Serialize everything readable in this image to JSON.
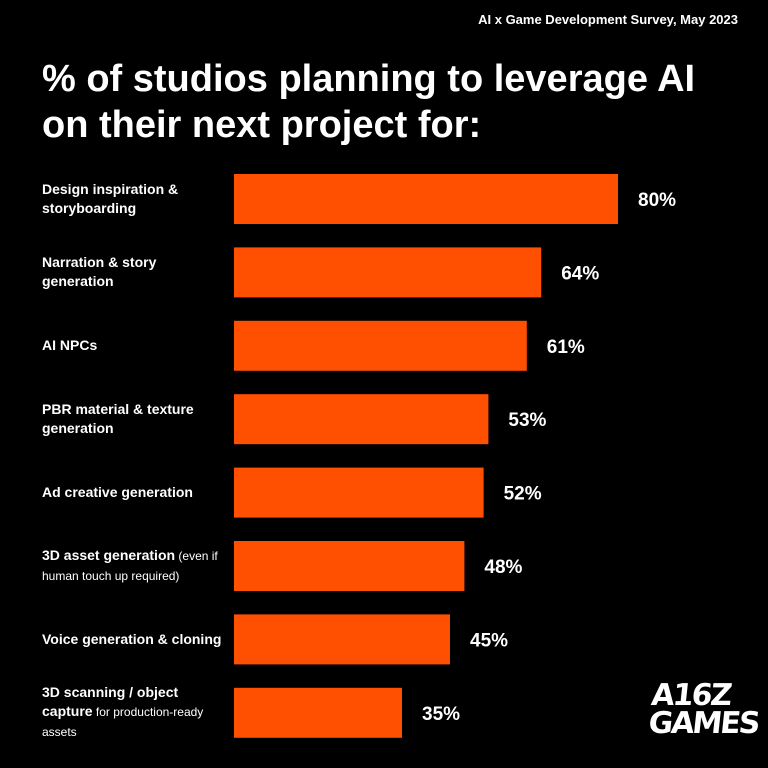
{
  "header": {
    "survey_note": "AI x Game Development Survey, May 2023",
    "title": "% of studios planning to leverage AI on their next project for:"
  },
  "logo": {
    "line1": "A16Z",
    "line2": "GAMES"
  },
  "colors": {
    "bar": "#ff4f00",
    "background": "#000000",
    "text": "#ffffff"
  },
  "chart_data": {
    "type": "bar",
    "orientation": "horizontal",
    "categories": [
      {
        "main": "Design inspiration & storyboarding",
        "note": ""
      },
      {
        "main": "Narration & story generation",
        "note": ""
      },
      {
        "main": "AI NPCs",
        "note": ""
      },
      {
        "main": "PBR material & texture generation",
        "note": ""
      },
      {
        "main": "Ad creative generation",
        "note": ""
      },
      {
        "main": "3D asset generation",
        "note": "(even if human touch up required)"
      },
      {
        "main": "Voice generation & cloning",
        "note": ""
      },
      {
        "main": "3D scanning / object capture",
        "note": "for production-ready assets"
      }
    ],
    "values": [
      80,
      64,
      61,
      53,
      52,
      48,
      45,
      35
    ],
    "value_labels": [
      "80%",
      "64%",
      "61%",
      "53%",
      "52%",
      "48%",
      "45%",
      "35%"
    ],
    "xlim": [
      0,
      80
    ],
    "grid": false
  }
}
